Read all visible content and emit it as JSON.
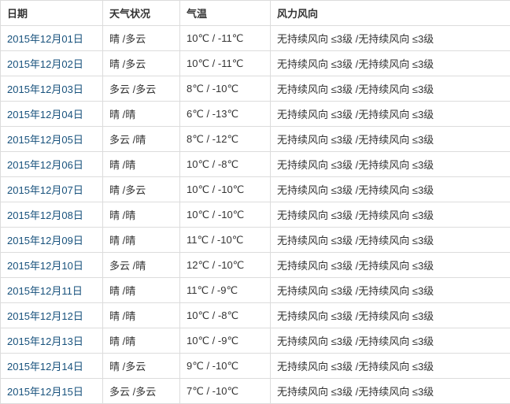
{
  "colors": {
    "link": "#17517c",
    "text": "#333333",
    "border": "#dcdcdc",
    "background": "#ffffff",
    "header_text": "#333333"
  },
  "table": {
    "columns": [
      {
        "key": "date",
        "label": "日期"
      },
      {
        "key": "weather",
        "label": "天气状况"
      },
      {
        "key": "temp",
        "label": "气温"
      },
      {
        "key": "wind",
        "label": "风力风向"
      }
    ],
    "rows": [
      {
        "date": "2015年12月01日",
        "weather": "晴 /多云",
        "temp": "10℃ / -11℃",
        "wind": "无持续风向 ≤3级 /无持续风向 ≤3级"
      },
      {
        "date": "2015年12月02日",
        "weather": "晴 /多云",
        "temp": "10℃ / -11℃",
        "wind": "无持续风向 ≤3级 /无持续风向 ≤3级"
      },
      {
        "date": "2015年12月03日",
        "weather": "多云 /多云",
        "temp": "8℃ / -10℃",
        "wind": "无持续风向 ≤3级 /无持续风向 ≤3级"
      },
      {
        "date": "2015年12月04日",
        "weather": "晴 /晴",
        "temp": "6℃ / -13℃",
        "wind": "无持续风向 ≤3级 /无持续风向 ≤3级"
      },
      {
        "date": "2015年12月05日",
        "weather": "多云 /晴",
        "temp": "8℃ / -12℃",
        "wind": "无持续风向 ≤3级 /无持续风向 ≤3级"
      },
      {
        "date": "2015年12月06日",
        "weather": "晴 /晴",
        "temp": "10℃ / -8℃",
        "wind": "无持续风向 ≤3级 /无持续风向 ≤3级"
      },
      {
        "date": "2015年12月07日",
        "weather": "晴 /多云",
        "temp": "10℃ / -10℃",
        "wind": "无持续风向 ≤3级 /无持续风向 ≤3级"
      },
      {
        "date": "2015年12月08日",
        "weather": "晴 /晴",
        "temp": "10℃ / -10℃",
        "wind": "无持续风向 ≤3级 /无持续风向 ≤3级"
      },
      {
        "date": "2015年12月09日",
        "weather": "晴 /晴",
        "temp": "11℃ / -10℃",
        "wind": "无持续风向 ≤3级 /无持续风向 ≤3级"
      },
      {
        "date": "2015年12月10日",
        "weather": "多云 /晴",
        "temp": "12℃ / -10℃",
        "wind": "无持续风向 ≤3级 /无持续风向 ≤3级"
      },
      {
        "date": "2015年12月11日",
        "weather": "晴 /晴",
        "temp": "11℃ / -9℃",
        "wind": "无持续风向 ≤3级 /无持续风向 ≤3级"
      },
      {
        "date": "2015年12月12日",
        "weather": "晴 /晴",
        "temp": "10℃ / -8℃",
        "wind": "无持续风向 ≤3级 /无持续风向 ≤3级"
      },
      {
        "date": "2015年12月13日",
        "weather": "晴 /晴",
        "temp": "10℃ / -9℃",
        "wind": "无持续风向 ≤3级 /无持续风向 ≤3级"
      },
      {
        "date": "2015年12月14日",
        "weather": "晴 /多云",
        "temp": "9℃ / -10℃",
        "wind": "无持续风向 ≤3级 /无持续风向 ≤3级"
      },
      {
        "date": "2015年12月15日",
        "weather": "多云 /多云",
        "temp": "7℃ / -10℃",
        "wind": "无持续风向 ≤3级 /无持续风向 ≤3级"
      }
    ]
  }
}
